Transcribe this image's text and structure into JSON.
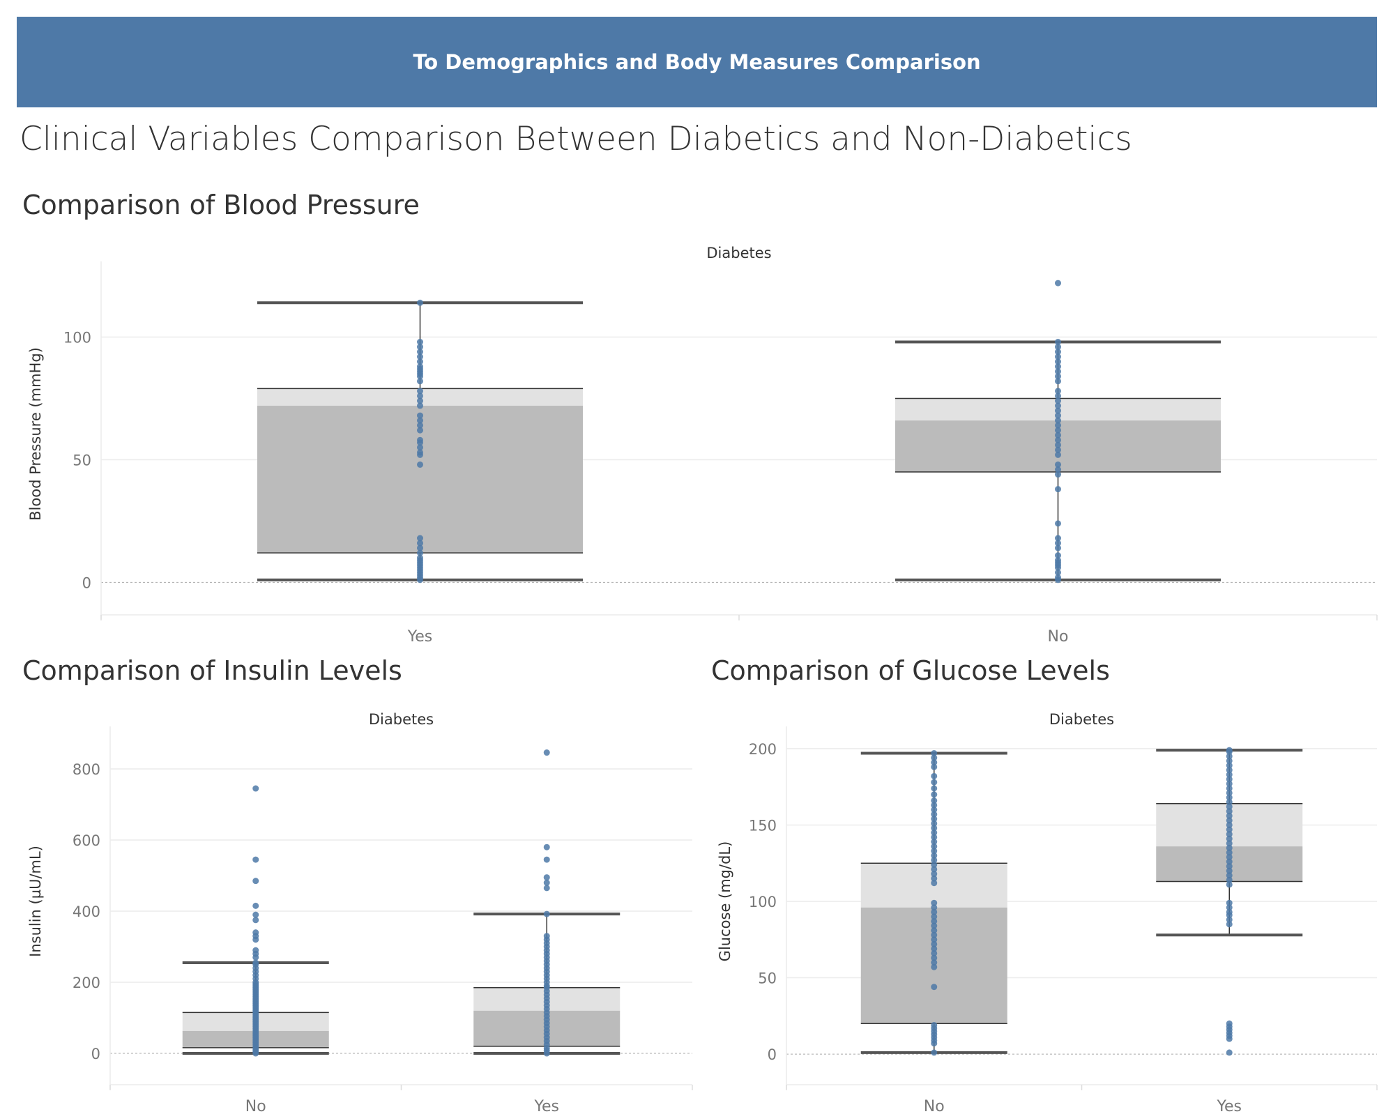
{
  "nav": {
    "button_label": "To Demographics and Body Measures Comparison"
  },
  "dashboard": {
    "title": "Clinical Variables Comparison Between Diabetics and Non-Diabetics"
  },
  "sections": {
    "blood_pressure": {
      "title": "Comparison of Blood Pressure"
    },
    "insulin": {
      "title": "Comparison of Insulin Levels"
    },
    "glucose": {
      "title": "Comparison of Glucose Levels"
    }
  },
  "colors": {
    "point": "#4e79a7",
    "box_upper": "#e2e2e2",
    "box_lower": "#bbbbbb",
    "whisker": "#555555",
    "grid": "#ececec",
    "zero_line": "#aaaaaa",
    "banner": "#4e79a7"
  },
  "chart_data": [
    {
      "id": "blood_pressure",
      "type": "box",
      "title": "Comparison of Blood Pressure",
      "column_header": "Diabetes",
      "ylabel": "Blood Pressure (mmHg)",
      "ylim": [
        -7,
        128
      ],
      "yticks": [
        0,
        50,
        100
      ],
      "grid": true,
      "categories": [
        {
          "name": "Yes",
          "whisker_low": 1,
          "q1": 12,
          "median": 72,
          "q3": 79,
          "whisker_high": 114,
          "points": [
            1,
            2,
            3,
            4,
            5,
            6,
            7,
            8,
            9,
            10,
            12,
            14,
            16,
            18,
            48,
            52,
            53,
            55,
            57,
            58,
            62,
            64,
            66,
            68,
            72,
            74,
            76,
            78,
            82,
            84,
            85,
            86,
            87,
            88,
            90,
            92,
            94,
            96,
            98,
            114
          ]
        },
        {
          "name": "No",
          "whisker_low": 1,
          "q1": 45,
          "median": 66,
          "q3": 75,
          "whisker_high": 98,
          "points": [
            1,
            2,
            4,
            6,
            7,
            8,
            9,
            11,
            14,
            16,
            18,
            24,
            38,
            44,
            46,
            48,
            52,
            54,
            56,
            58,
            60,
            62,
            64,
            66,
            68,
            70,
            72,
            74,
            76,
            78,
            82,
            84,
            86,
            88,
            90,
            92,
            94,
            96,
            98,
            122
          ]
        }
      ]
    },
    {
      "id": "insulin",
      "type": "box",
      "title": "Comparison of Insulin Levels",
      "column_header": "Diabetes",
      "ylabel": "Insulin (µU/mL)",
      "ylim": [
        -45,
        900
      ],
      "yticks": [
        0,
        200,
        400,
        600,
        800
      ],
      "grid": true,
      "categories": [
        {
          "name": "No",
          "whisker_low": 0,
          "q1": 16,
          "median": 63,
          "q3": 115,
          "whisker_high": 255,
          "points": [
            0,
            5,
            10,
            15,
            20,
            25,
            30,
            35,
            40,
            45,
            50,
            55,
            60,
            65,
            70,
            75,
            80,
            85,
            90,
            95,
            100,
            105,
            110,
            115,
            120,
            125,
            130,
            135,
            140,
            145,
            150,
            155,
            160,
            165,
            170,
            175,
            180,
            185,
            190,
            195,
            200,
            210,
            220,
            230,
            240,
            250,
            255,
            270,
            280,
            290,
            320,
            330,
            340,
            375,
            390,
            415,
            485,
            545,
            745
          ]
        },
        {
          "name": "Yes",
          "whisker_low": 0,
          "q1": 20,
          "median": 120,
          "q3": 185,
          "whisker_high": 392,
          "points": [
            0,
            8,
            15,
            25,
            35,
            45,
            55,
            65,
            75,
            85,
            95,
            105,
            115,
            125,
            135,
            145,
            155,
            165,
            175,
            185,
            190,
            200,
            210,
            220,
            230,
            240,
            250,
            260,
            270,
            280,
            290,
            300,
            310,
            320,
            330,
            392,
            465,
            480,
            495,
            545,
            580,
            846
          ]
        }
      ]
    },
    {
      "id": "glucose",
      "type": "box",
      "title": "Comparison of Glucose Levels",
      "column_header": "Diabetes",
      "ylabel": "Glucose (mg/dL)",
      "ylim": [
        -10,
        210
      ],
      "yticks": [
        0,
        50,
        100,
        150,
        200
      ],
      "grid": true,
      "categories": [
        {
          "name": "No",
          "whisker_low": 1,
          "q1": 20,
          "median": 96,
          "q3": 125,
          "whisker_high": 197,
          "points": [
            1,
            7,
            9,
            11,
            13,
            15,
            17,
            19,
            44,
            57,
            60,
            63,
            66,
            69,
            72,
            75,
            78,
            81,
            84,
            87,
            90,
            93,
            96,
            99,
            112,
            115,
            118,
            121,
            124,
            127,
            130,
            133,
            136,
            139,
            142,
            145,
            148,
            151,
            154,
            157,
            160,
            163,
            166,
            170,
            174,
            178,
            182,
            188,
            191,
            194,
            197
          ]
        },
        {
          "name": "Yes",
          "whisker_low": 78,
          "q1": 113,
          "median": 136,
          "q3": 164,
          "whisker_high": 199,
          "points": [
            1,
            10,
            12,
            14,
            16,
            18,
            20,
            85,
            88,
            91,
            93,
            96,
            99,
            111,
            114,
            117,
            120,
            123,
            126,
            129,
            132,
            135,
            138,
            141,
            144,
            147,
            150,
            153,
            156,
            159,
            162,
            165,
            168,
            171,
            174,
            177,
            180,
            183,
            186,
            189,
            192,
            195,
            198,
            199
          ]
        }
      ]
    }
  ]
}
